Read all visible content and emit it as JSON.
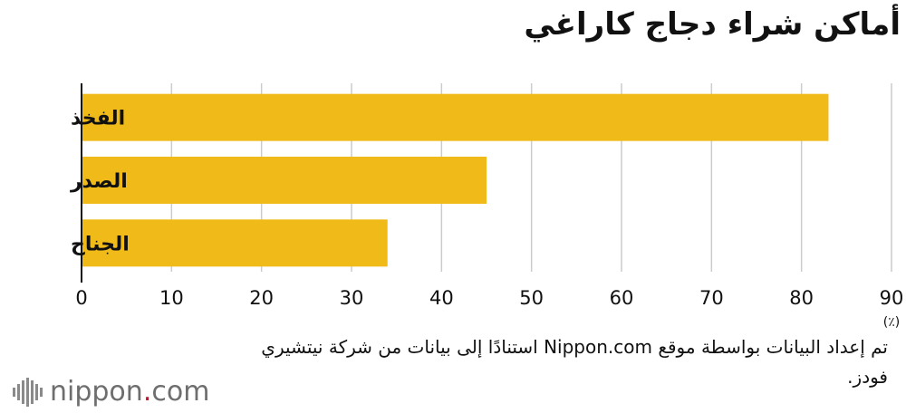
{
  "title": "أماكن شراء دجاج كاراغي",
  "note": "تم إعداد البيانات بواسطة موقع Nippon.com استنادًا إلى بيانات من شركة نيتشيري فودز.",
  "logo": {
    "name": "nippon",
    "dot": ".",
    "suffix": "com"
  },
  "colors": {
    "bar": "#F0BA18",
    "grid": "#cccccc",
    "axis": "#111111"
  },
  "chart_data": {
    "type": "bar",
    "orientation": "horizontal",
    "title": "أماكن شراء دجاج كاراغي",
    "categories": [
      "الفخذ",
      "الصدر",
      "الجناح"
    ],
    "values": [
      83,
      45,
      34
    ],
    "xlim": [
      0,
      90
    ],
    "xticks": [
      "0",
      "10",
      "20",
      "30",
      "40",
      "50",
      "60",
      "70",
      "80",
      "90"
    ],
    "unit": "(٪)",
    "grid": true
  }
}
